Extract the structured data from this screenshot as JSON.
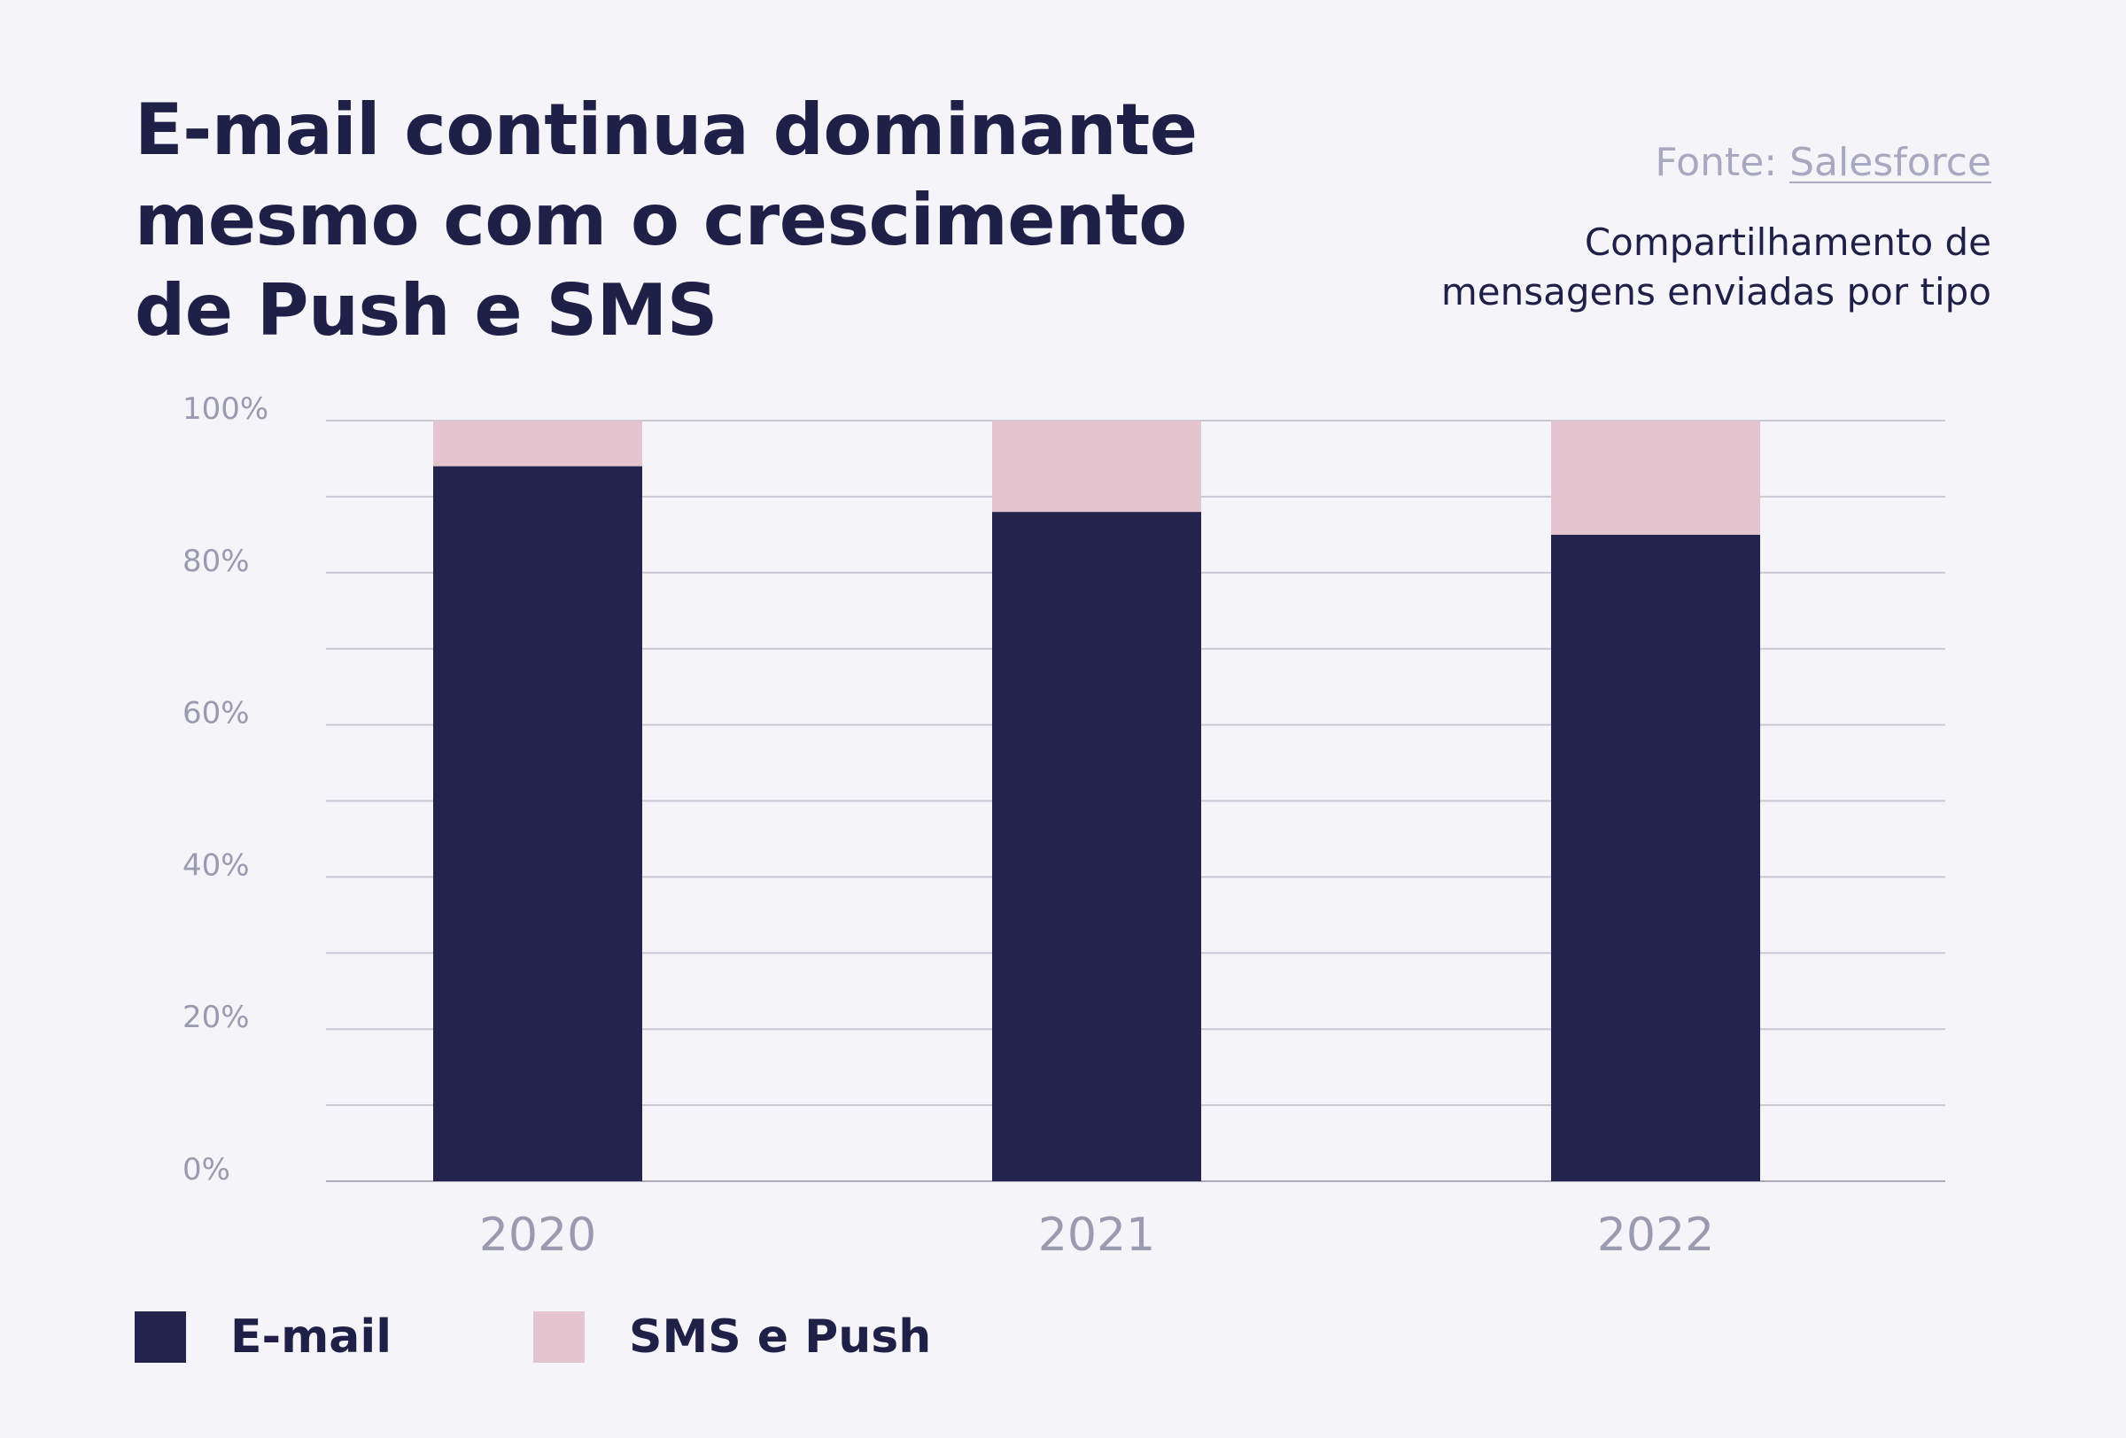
{
  "header": {
    "title_lines": [
      "E-mail continua dominante",
      "mesmo com o crescimento",
      "de Push e SMS"
    ],
    "source_prefix": "Fonte: ",
    "source_link": "Salesforce",
    "subtitle_lines": [
      "Compartilhamento de",
      "mensagens enviadas por tipo"
    ]
  },
  "chart_data": {
    "type": "bar",
    "stacked": true,
    "categories": [
      "2020",
      "2021",
      "2022"
    ],
    "series": [
      {
        "name": "E-mail",
        "color": "#24234d",
        "values": [
          94,
          88,
          85
        ]
      },
      {
        "name": "SMS e Push",
        "color": "#e3c4cf",
        "values": [
          6,
          12,
          15
        ]
      }
    ],
    "ylim": [
      0,
      100
    ],
    "yticks": [
      "0%",
      "20%",
      "40%",
      "60%",
      "80%",
      "100%"
    ],
    "ytick_values": [
      0,
      20,
      40,
      60,
      80,
      100
    ],
    "grid": true,
    "legend": "bottom-left"
  },
  "colors": {
    "background": "#f5f4f9",
    "title": "#1f2047",
    "grid": "#c9c9d6",
    "tick_label": "#9a9ab0"
  }
}
